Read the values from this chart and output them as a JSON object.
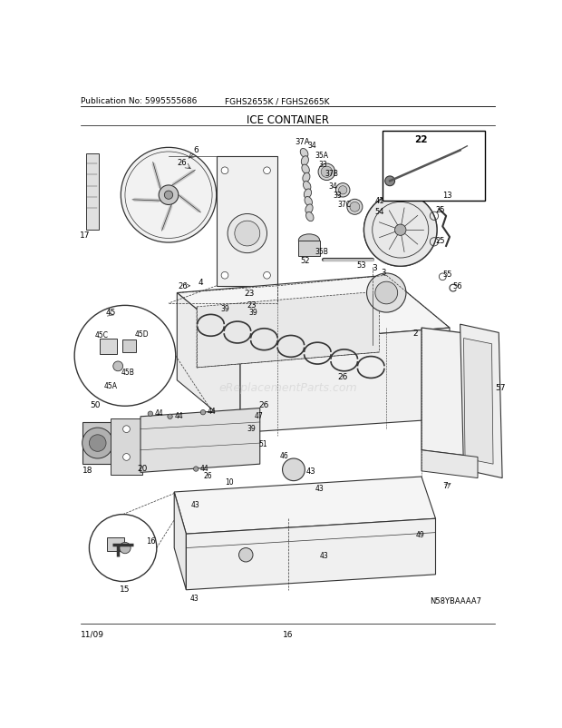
{
  "pub_no": "Publication No: 5995555686",
  "model": "FGHS2655K / FGHS2665K",
  "title": "ICE CONTAINER",
  "date": "11/09",
  "page": "16",
  "watermark": "eReplacementParts.com",
  "diagram_id": "N58YBAAAA7",
  "bg_color": "#ffffff",
  "text_color": "#000000",
  "header_font_size": 6.5,
  "title_font_size": 8.5,
  "footer_font_size": 6.5,
  "line_color": "#333333",
  "light_gray": "#d8d8d8",
  "mid_gray": "#b0b0b0"
}
